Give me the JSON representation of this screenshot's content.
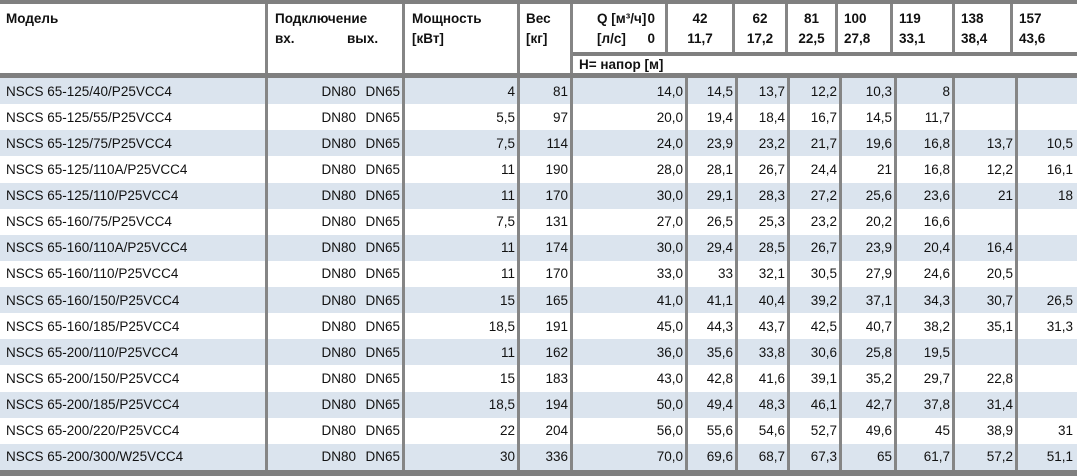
{
  "table": {
    "header": {
      "model": "Модель",
      "connection": {
        "title": "Подключение",
        "in": "вх.",
        "out": "вых."
      },
      "power": {
        "line1": "Мощность",
        "line2": "[кВт]"
      },
      "weight": {
        "line1": "Вес",
        "line2": "[кг]"
      },
      "flow": {
        "label_m3h": "Q [м³/ч]",
        "value0_m3h": "0",
        "label_ls": "[л/с]",
        "value0_ls": "0",
        "columns": [
          {
            "m3h": "42",
            "ls": "11,7"
          },
          {
            "m3h": "62",
            "ls": "17,2"
          },
          {
            "m3h": "81",
            "ls": "22,5"
          },
          {
            "m3h": "100",
            "ls": "27,8"
          },
          {
            "m3h": "119",
            "ls": "33,1"
          },
          {
            "m3h": "138",
            "ls": "38,4"
          },
          {
            "m3h": "157",
            "ls": "43,6"
          }
        ]
      },
      "head_row_label": "Н= напор [м]"
    },
    "rows": [
      {
        "model": "NSCS 65-125/40/P25VCC4",
        "inlet": "DN80",
        "outlet": "DN65",
        "power": "4",
        "weight": "81",
        "heads": [
          "14,0",
          "14,5",
          "13,7",
          "12,2",
          "10,3",
          "8",
          "",
          ""
        ]
      },
      {
        "model": "NSCS 65-125/55/P25VCC4",
        "inlet": "DN80",
        "outlet": "DN65",
        "power": "5,5",
        "weight": "97",
        "heads": [
          "20,0",
          "19,4",
          "18,4",
          "16,7",
          "14,5",
          "11,7",
          "",
          ""
        ]
      },
      {
        "model": "NSCS 65-125/75/P25VCC4",
        "inlet": "DN80",
        "outlet": "DN65",
        "power": "7,5",
        "weight": "114",
        "heads": [
          "24,0",
          "23,9",
          "23,2",
          "21,7",
          "19,6",
          "16,8",
          "13,7",
          "10,5"
        ]
      },
      {
        "model": "NSCS 65-125/110A/P25VCC4",
        "inlet": "DN80",
        "outlet": "DN65",
        "power": "11",
        "weight": "190",
        "heads": [
          "28,0",
          "28,1",
          "26,7",
          "24,4",
          "21",
          "16,8",
          "12,2",
          "16,1"
        ]
      },
      {
        "model": "NSCS 65-125/110/P25VCC4",
        "inlet": "DN80",
        "outlet": "DN65",
        "power": "11",
        "weight": "170",
        "heads": [
          "30,0",
          "29,1",
          "28,3",
          "27,2",
          "25,6",
          "23,6",
          "21",
          "18"
        ]
      },
      {
        "model": "NSCS 65-160/75/P25VCC4",
        "inlet": "DN80",
        "outlet": "DN65",
        "power": "7,5",
        "weight": "131",
        "heads": [
          "27,0",
          "26,5",
          "25,3",
          "23,2",
          "20,2",
          "16,6",
          "",
          ""
        ]
      },
      {
        "model": "NSCS 65-160/110A/P25VCC4",
        "inlet": "DN80",
        "outlet": "DN65",
        "power": "11",
        "weight": "174",
        "heads": [
          "30,0",
          "29,4",
          "28,5",
          "26,7",
          "23,9",
          "20,4",
          "16,4",
          ""
        ]
      },
      {
        "model": "NSCS 65-160/110/P25VCC4",
        "inlet": "DN80",
        "outlet": "DN65",
        "power": "11",
        "weight": "170",
        "heads": [
          "33,0",
          "33",
          "32,1",
          "30,5",
          "27,9",
          "24,6",
          "20,5",
          ""
        ]
      },
      {
        "model": "NSCS 65-160/150/P25VCC4",
        "inlet": "DN80",
        "outlet": "DN65",
        "power": "15",
        "weight": "165",
        "heads": [
          "41,0",
          "41,1",
          "40,4",
          "39,2",
          "37,1",
          "34,3",
          "30,7",
          "26,5"
        ]
      },
      {
        "model": "NSCS 65-160/185/P25VCC4",
        "inlet": "DN80",
        "outlet": "DN65",
        "power": "18,5",
        "weight": "191",
        "heads": [
          "45,0",
          "44,3",
          "43,7",
          "42,5",
          "40,7",
          "38,2",
          "35,1",
          "31,3"
        ]
      },
      {
        "model": "NSCS 65-200/110/P25VCC4",
        "inlet": "DN80",
        "outlet": "DN65",
        "power": "11",
        "weight": "162",
        "heads": [
          "36,0",
          "35,6",
          "33,8",
          "30,6",
          "25,8",
          "19,5",
          "",
          ""
        ]
      },
      {
        "model": "NSCS 65-200/150/P25VCC4",
        "inlet": "DN80",
        "outlet": "DN65",
        "power": "15",
        "weight": "183",
        "heads": [
          "43,0",
          "42,8",
          "41,6",
          "39,1",
          "35,2",
          "29,7",
          "22,8",
          ""
        ]
      },
      {
        "model": "NSCS 65-200/185/P25VCC4",
        "inlet": "DN80",
        "outlet": "DN65",
        "power": "18,5",
        "weight": "194",
        "heads": [
          "50,0",
          "49,4",
          "48,3",
          "46,1",
          "42,7",
          "37,8",
          "31,4",
          ""
        ]
      },
      {
        "model": "NSCS 65-200/220/P25VCC4",
        "inlet": "DN80",
        "outlet": "DN65",
        "power": "22",
        "weight": "204",
        "heads": [
          "56,0",
          "55,6",
          "54,6",
          "52,7",
          "49,6",
          "45",
          "38,9",
          "31"
        ]
      },
      {
        "model": "NSCS 65-200/300/W25VCC4",
        "inlet": "DN80",
        "outlet": "DN65",
        "power": "30",
        "weight": "336",
        "heads": [
          "70,0",
          "69,6",
          "68,7",
          "67,3",
          "65",
          "61,7",
          "57,2",
          "51,1"
        ]
      }
    ],
    "colors": {
      "stripe": "#dbe4ee",
      "border": "#858585",
      "thick_border": "#7f7f7f"
    }
  }
}
